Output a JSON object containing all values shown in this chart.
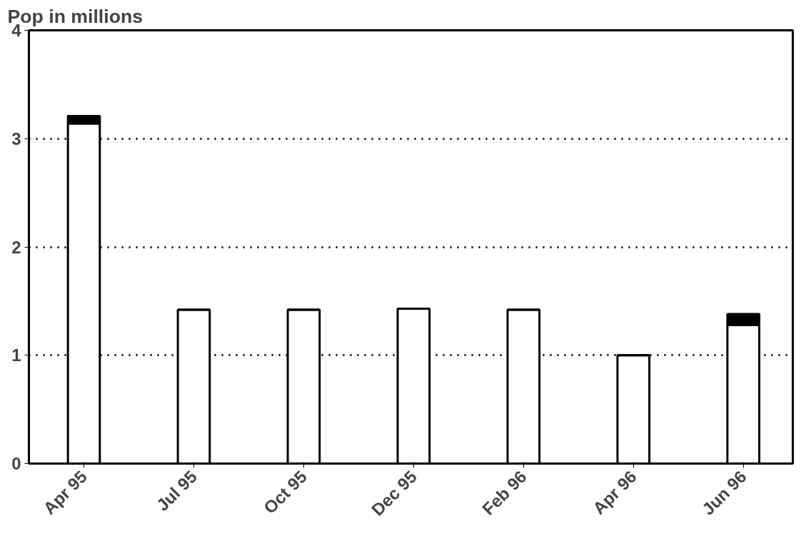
{
  "chart_data": {
    "type": "bar",
    "ylabel": "Pop in millions",
    "stacked": true,
    "categories": [
      "Apr 95",
      "Jul 95",
      "Oct 95",
      "Dec 95",
      "Feb 96",
      "Apr 96",
      "Jun 96"
    ],
    "series": [
      {
        "color": "#ffffff",
        "values": [
          3.14,
          1.42,
          1.42,
          1.43,
          1.42,
          1.0,
          1.28
        ]
      },
      {
        "color": "#000000",
        "values": [
          0.07,
          0,
          0,
          0,
          0,
          0,
          0.1
        ]
      }
    ],
    "ylim": [
      0,
      4
    ],
    "yticks": [
      0,
      1,
      2,
      3,
      4
    ],
    "grid": "y"
  }
}
